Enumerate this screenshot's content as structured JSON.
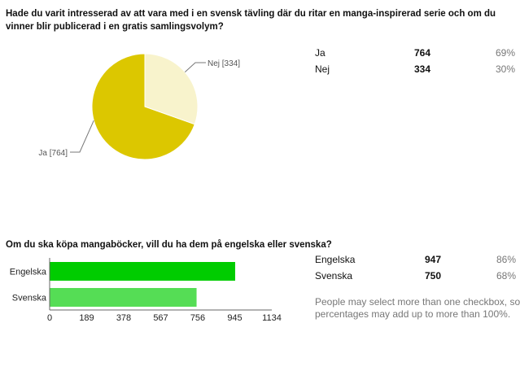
{
  "questions": [
    {
      "title": "Hade du varit intresserad av att vara med i en svensk tävling där du ritar en manga-inspirerad serie och om du vinner blir publicerad i en gratis samlingsvolym?",
      "rows": [
        {
          "label": "Ja",
          "count": "764",
          "percent": "69%"
        },
        {
          "label": "Nej",
          "count": "334",
          "percent": "30%"
        }
      ]
    },
    {
      "title": "Om du ska köpa mangaböcker, vill du ha dem på engelska eller svenska?",
      "rows": [
        {
          "label": "Engelska",
          "count": "947",
          "percent": "86%"
        },
        {
          "label": "Svenska",
          "count": "750",
          "percent": "68%"
        }
      ],
      "note": "People may select more than one checkbox, so percentages may add up to more than 100%."
    }
  ],
  "chart_data": [
    {
      "type": "pie",
      "labels": [
        "Ja",
        "Nej"
      ],
      "values": [
        764,
        334
      ],
      "slice_labels": [
        "Ja [764]",
        "Nej [334]"
      ],
      "colors": [
        "#dcc700",
        "#f8f3cc"
      ]
    },
    {
      "type": "bar",
      "orientation": "horizontal",
      "categories": [
        "Engelska",
        "Svenska"
      ],
      "values": [
        947,
        750
      ],
      "colors": [
        "#00cc00",
        "#55dd55"
      ],
      "xlim": [
        0,
        1134
      ],
      "xticks": [
        "0",
        "189",
        "378",
        "567",
        "756",
        "945",
        "1134"
      ]
    }
  ]
}
